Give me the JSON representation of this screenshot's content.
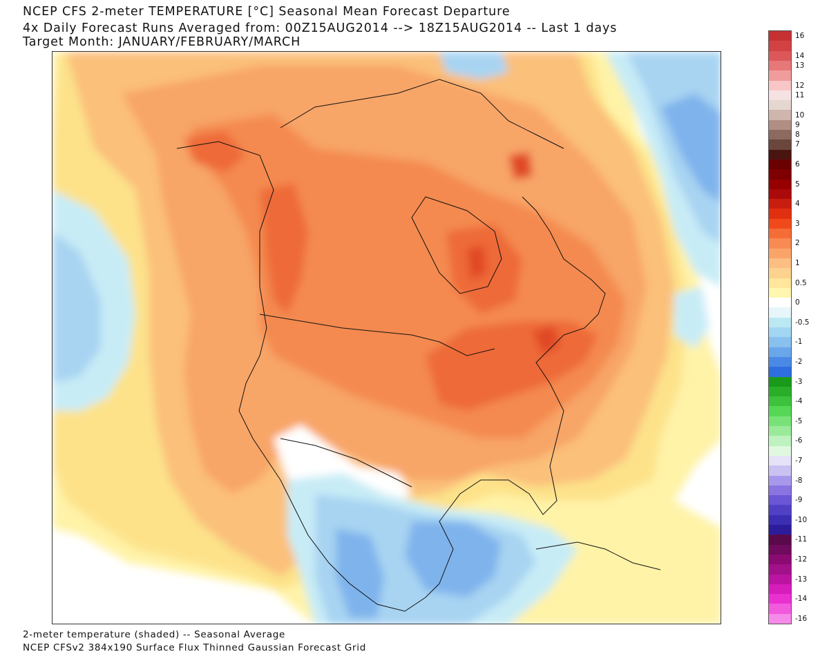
{
  "header": {
    "title_line1": "NCEP CFS 2-meter TEMPERATURE [°C] Seasonal Mean Forecast Departure",
    "title_line2": "4x Daily Forecast Runs Averaged from: 00Z15AUG2014 --> 18Z15AUG2014 -- Last 1 days",
    "title_line3": "Target Month: JANUARY/FEBRUARY/MARCH"
  },
  "footer": {
    "line1": "2-meter temperature (shaded) -- Seasonal Average",
    "line2": "NCEP CFSv2 384x190 Surface Flux Thinned Gaussian Forecast Grid"
  },
  "map": {
    "region": "North America",
    "variable": "2-meter temperature departure",
    "background_color": "#ffffff",
    "colors": {
      "ocean_warm_light": "#fff3a8",
      "warm_050": "#fde28a",
      "warm_1": "#fbc07a",
      "warm_15": "#f8a568",
      "warm_2": "#f48a50",
      "warm_3": "#ee6a38",
      "warm_4": "#e04828",
      "cool_05": "#c8ecf6",
      "cool_1": "#a8d4f2",
      "cool_15": "#7fb3ec",
      "cool_2": "#4f8ee6"
    }
  },
  "legend": {
    "bins": [
      {
        "label": "16",
        "color": "#c63232"
      },
      {
        "label": "",
        "color": "#d24242"
      },
      {
        "label": "14",
        "color": "#dc5858"
      },
      {
        "label": "13",
        "color": "#e67878"
      },
      {
        "label": "",
        "color": "#f09c9c"
      },
      {
        "label": "12",
        "color": "#f8c6c6"
      },
      {
        "label": "11",
        "color": "#f6e2e2"
      },
      {
        "label": "",
        "color": "#e6d6d0"
      },
      {
        "label": "10",
        "color": "#cfb6ad"
      },
      {
        "label": "9",
        "color": "#b08e84"
      },
      {
        "label": "8",
        "color": "#8c6a60"
      },
      {
        "label": "7",
        "color": "#6a463c"
      },
      {
        "label": "",
        "color": "#4a1410"
      },
      {
        "label": "6",
        "color": "#6a0000"
      },
      {
        "label": "",
        "color": "#7e0000"
      },
      {
        "label": "5",
        "color": "#960000"
      },
      {
        "label": "",
        "color": "#aa0a0a"
      },
      {
        "label": "4",
        "color": "#c81e10"
      },
      {
        "label": "",
        "color": "#e03010"
      },
      {
        "label": "3",
        "color": "#f04a1a"
      },
      {
        "label": "",
        "color": "#f66c36"
      },
      {
        "label": "2",
        "color": "#f88a54"
      },
      {
        "label": "",
        "color": "#faa46a"
      },
      {
        "label": "1",
        "color": "#fcbe82"
      },
      {
        "label": "",
        "color": "#fdd28e"
      },
      {
        "label": "0.5",
        "color": "#ffe69a"
      },
      {
        "label": "",
        "color": "#fff6b0"
      },
      {
        "label": "0",
        "color": "#ffffff"
      },
      {
        "label": "",
        "color": "#e6f6fa"
      },
      {
        "label": "-0.5",
        "color": "#bce8f4"
      },
      {
        "label": "",
        "color": "#a2d6f2"
      },
      {
        "label": "-1",
        "color": "#88c0ee"
      },
      {
        "label": "",
        "color": "#6aa6ea"
      },
      {
        "label": "-2",
        "color": "#4a8ae6"
      },
      {
        "label": "",
        "color": "#2e6ee0"
      },
      {
        "label": "-3",
        "color": "#1a9a1a"
      },
      {
        "label": "",
        "color": "#2aae2a"
      },
      {
        "label": "-4",
        "color": "#3cc23c"
      },
      {
        "label": "",
        "color": "#56d856"
      },
      {
        "label": "-5",
        "color": "#78e278"
      },
      {
        "label": "",
        "color": "#9aea9a"
      },
      {
        "label": "-6",
        "color": "#bef2be"
      },
      {
        "label": "",
        "color": "#e0f8e0"
      },
      {
        "label": "-7",
        "color": "#e6e2f8"
      },
      {
        "label": "",
        "color": "#cac2f2"
      },
      {
        "label": "-8",
        "color": "#a898ec"
      },
      {
        "label": "",
        "color": "#8a74e2"
      },
      {
        "label": "-9",
        "color": "#6a56d6"
      },
      {
        "label": "",
        "color": "#5040c4"
      },
      {
        "label": "-10",
        "color": "#3c2eb2"
      },
      {
        "label": "",
        "color": "#2c1c9c"
      },
      {
        "label": "-11",
        "color": "#5a0a4a"
      },
      {
        "label": "",
        "color": "#700a5c"
      },
      {
        "label": "-12",
        "color": "#8a0a72"
      },
      {
        "label": "",
        "color": "#a2108a"
      },
      {
        "label": "-13",
        "color": "#bc14a2"
      },
      {
        "label": "",
        "color": "#d61cba"
      },
      {
        "label": "-14",
        "color": "#ea30d0"
      },
      {
        "label": "",
        "color": "#f25ade"
      },
      {
        "label": "-16",
        "color": "#f68ae8"
      }
    ]
  }
}
